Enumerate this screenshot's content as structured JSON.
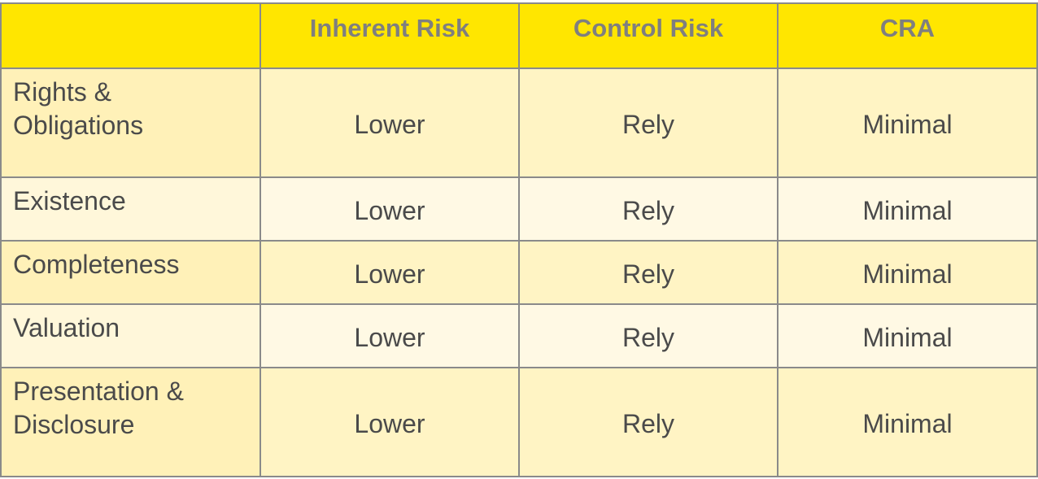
{
  "table": {
    "headers": [
      "",
      "Inherent Risk",
      "Control Risk",
      "CRA"
    ],
    "rows": [
      {
        "assertion": "Rights & Obligations",
        "inherent_risk": "Lower",
        "control_risk": "Rely",
        "cra": "Minimal"
      },
      {
        "assertion": "Existence",
        "inherent_risk": "Lower",
        "control_risk": "Rely",
        "cra": "Minimal"
      },
      {
        "assertion": "Completeness",
        "inherent_risk": "Lower",
        "control_risk": "Rely",
        "cra": "Minimal"
      },
      {
        "assertion": "Valuation",
        "inherent_risk": "Lower",
        "control_risk": "Rely",
        "cra": "Minimal"
      },
      {
        "assertion": "Presentation & Disclosure",
        "inherent_risk": "Lower",
        "control_risk": "Rely",
        "cra": "Minimal"
      }
    ]
  },
  "colors": {
    "header_bg": "#ffe600",
    "header_text": "#7f7f7f",
    "row_odd_bg": "#fff4c4",
    "row_even_bg": "#fff9e4",
    "grid": "#8a8a8a"
  }
}
